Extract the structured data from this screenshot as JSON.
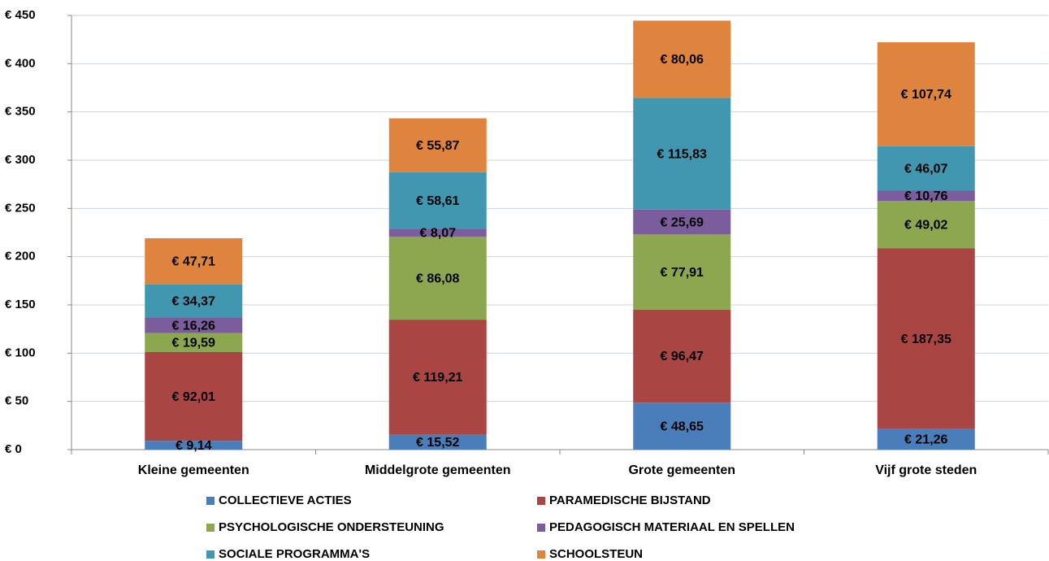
{
  "chart_data": {
    "type": "stacked_bar",
    "categories": [
      "Kleine gemeenten",
      "Middelgrote gemeenten",
      "Grote gemeenten",
      "Vijf grote steden"
    ],
    "series": [
      {
        "name": "COLLECTIEVE ACTIES",
        "color": "#4a7ebb",
        "values": [
          9.14,
          15.52,
          48.65,
          21.26
        ],
        "value_labels": [
          "€ 9,14",
          "€ 15,52",
          "€ 48,65",
          "€ 21,26"
        ]
      },
      {
        "name": "PARAMEDISCHE BIJSTAND",
        "color": "#a94542",
        "values": [
          92.01,
          119.21,
          96.47,
          187.35
        ],
        "value_labels": [
          "€ 92,01",
          "€ 119,21",
          "€ 96,47",
          "€ 187,35"
        ]
      },
      {
        "name": "PSYCHOLOGISCHE ONDERSTEUNING",
        "color": "#8ca74f",
        "values": [
          19.59,
          86.08,
          77.91,
          49.02
        ],
        "value_labels": [
          "€ 19,59",
          "€ 86,08",
          "€ 77,91",
          "€ 49,02"
        ]
      },
      {
        "name": "PEDAGOGISCH MATERIAAL EN SPELLEN",
        "color": "#7b5c9d",
        "values": [
          16.26,
          8.07,
          25.69,
          10.76
        ],
        "value_labels": [
          "€ 16,26",
          "€ 8,07",
          "€ 25,69",
          "€ 10,76"
        ]
      },
      {
        "name": "SOCIALE PROGRAMMA'S",
        "color": "#4197b0",
        "values": [
          34.37,
          58.61,
          115.83,
          46.07
        ],
        "value_labels": [
          "€ 34,37",
          "€ 58,61",
          "€ 115,83",
          "€ 46,07"
        ]
      },
      {
        "name": "SCHOOLSTEUN",
        "color": "#df843f",
        "values": [
          47.71,
          55.87,
          80.06,
          107.74
        ],
        "value_labels": [
          "€ 47,71",
          "€ 55,87",
          "€ 80,06",
          "€ 107,74"
        ]
      }
    ],
    "ylim": [
      0,
      450
    ],
    "yticks": [
      {
        "value": 0,
        "label": "€ 0"
      },
      {
        "value": 50,
        "label": "€ 50"
      },
      {
        "value": 100,
        "label": "€ 100"
      },
      {
        "value": 150,
        "label": "€ 150"
      },
      {
        "value": 200,
        "label": "€ 200"
      },
      {
        "value": 250,
        "label": "€ 250"
      },
      {
        "value": 300,
        "label": "€ 300"
      },
      {
        "value": 350,
        "label": "€ 350"
      },
      {
        "value": 400,
        "label": "€ 400"
      },
      {
        "value": 450,
        "label": "€ 450"
      }
    ],
    "grid": true
  }
}
